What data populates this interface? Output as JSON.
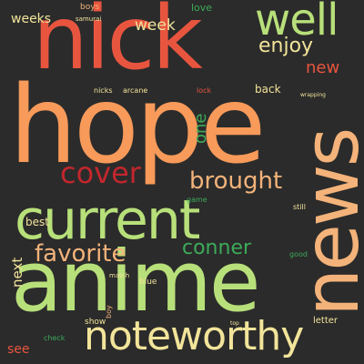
{
  "palette": {
    "background": "#2b2b2b",
    "red": "#e8553f",
    "orange": "#f79a5a",
    "peach": "#f4b37a",
    "yellow": "#f2e49a",
    "green": "#3daa59",
    "lightgreen": "#b8e07a",
    "deepred": "#c1272d"
  },
  "words": [
    {
      "text": "hope",
      "color": "orange"
    },
    {
      "text": "anime",
      "color": "lightgreen"
    },
    {
      "text": "nick",
      "color": "red"
    },
    {
      "text": "news",
      "color": "peach"
    },
    {
      "text": "current",
      "color": "lightgreen"
    },
    {
      "text": "noteworthy",
      "color": "yellow"
    },
    {
      "text": "well",
      "color": "lightgreen"
    },
    {
      "text": "cover",
      "color": "deepred"
    },
    {
      "text": "brought",
      "color": "peach"
    },
    {
      "text": "favorite",
      "color": "peach"
    },
    {
      "text": "conner",
      "color": "green"
    },
    {
      "text": "enjoy",
      "color": "yellow"
    },
    {
      "text": "new",
      "color": "red"
    },
    {
      "text": "week",
      "color": "yellow"
    },
    {
      "text": "weeks",
      "color": "yellow"
    },
    {
      "text": "one",
      "color": "green"
    },
    {
      "text": "next",
      "color": "yellow"
    },
    {
      "text": "best",
      "color": "yellow"
    },
    {
      "text": "love",
      "color": "green"
    },
    {
      "text": "back",
      "color": "yellow"
    },
    {
      "text": "see",
      "color": "red"
    },
    {
      "text": "show",
      "color": "yellow"
    },
    {
      "text": "letter",
      "color": "yellow"
    },
    {
      "text": "blue",
      "color": "yellow"
    },
    {
      "text": "boys",
      "color": "peach"
    },
    {
      "text": "nicks",
      "color": "yellow"
    },
    {
      "text": "arcane",
      "color": "yellow"
    },
    {
      "text": "samurai",
      "color": "yellow"
    },
    {
      "text": "still",
      "color": "yellow"
    },
    {
      "text": "game",
      "color": "green"
    },
    {
      "text": "lock",
      "color": "red"
    },
    {
      "text": "match",
      "color": "yellow"
    },
    {
      "text": "check",
      "color": "green"
    },
    {
      "text": "good",
      "color": "green"
    },
    {
      "text": "wrapping",
      "color": "yellow"
    },
    {
      "text": "top",
      "color": "yellow"
    },
    {
      "text": "boy",
      "color": "peach"
    }
  ]
}
